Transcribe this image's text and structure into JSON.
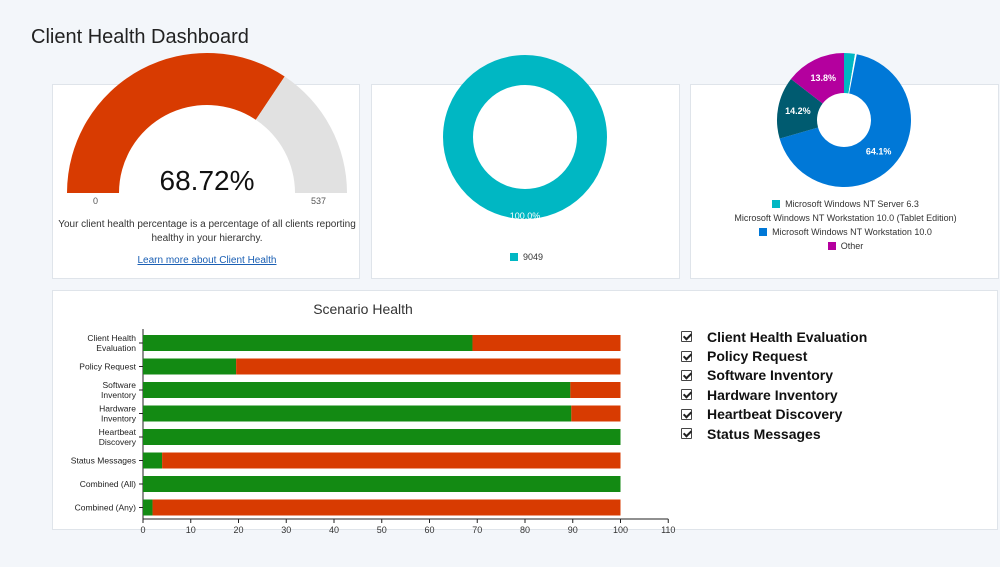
{
  "page": {
    "title": "Client Health Dashboard"
  },
  "gauge": {
    "value_text": "68.72%",
    "value_fraction": 0.6872,
    "min_label": "0",
    "max_label": "537",
    "description_line1": "Your client health percentage is a percentage of all clients reporting",
    "description_line2": "healthy in your hierarchy.",
    "link_text": "Learn more about Client Health",
    "colors": {
      "healthy": "#d83b01",
      "remaining": "#e1e1e1"
    }
  },
  "donut": {
    "slices": [
      {
        "label": "9049",
        "percent": 100.0,
        "percent_text": "100.0%",
        "color": "#00b7c3"
      }
    ]
  },
  "os_pie": {
    "slices": [
      {
        "label": "Microsoft Windows NT Server 6.3",
        "percent": 2.5,
        "percent_text": "",
        "color": "#00b7c3"
      },
      {
        "label": "Microsoft Windows NT Workstation 10.0 (Tablet Edition)",
        "percent": 0.4,
        "percent_text": "",
        "color": "#ffffff"
      },
      {
        "label": "Microsoft Windows NT Workstation 10.0",
        "percent": 64.1,
        "percent_text": "64.1%",
        "color": "#0078d7"
      },
      {
        "label": "",
        "percent": 14.2,
        "percent_text": "14.2%",
        "color": "#005b70"
      },
      {
        "label": "Other",
        "percent": 13.8,
        "percent_text": "13.8%",
        "color": "#b4009e"
      }
    ],
    "legend": [
      {
        "label": "Microsoft Windows NT Server 6.3",
        "color": "#00b7c3"
      },
      {
        "label": "Microsoft Windows NT Workstation 10.0 (Tablet Edition)",
        "color": ""
      },
      {
        "label": "Microsoft Windows NT Workstation 10.0",
        "color": "#0078d7"
      },
      {
        "label": "Other",
        "color": "#b4009e"
      }
    ]
  },
  "scenario": {
    "title": "Scenario Health",
    "legend": [
      "Client Health Evaluation",
      "Policy Request",
      "Software Inventory",
      "Hardware Inventory",
      "Heartbeat Discovery",
      "Status Messages"
    ]
  },
  "chart_data": {
    "type": "bar",
    "orientation": "horizontal",
    "stacked": true,
    "title": "Scenario Health",
    "categories": [
      [
        "Client Health",
        "Evaluation"
      ],
      [
        "Policy Request"
      ],
      [
        "Software",
        "Inventory"
      ],
      [
        "Hardware",
        "Inventory"
      ],
      [
        "Heartbeat",
        "Discovery"
      ],
      [
        "Status Messages"
      ],
      [
        "Combined (All)"
      ],
      [
        "Combined (Any)"
      ]
    ],
    "series": [
      {
        "values": [
          69,
          19.5,
          89.5,
          89.7,
          100,
          4,
          100,
          2
        ],
        "color": "#138a13"
      },
      {
        "values": [
          31,
          80.5,
          10.5,
          10.3,
          0,
          96,
          0,
          98
        ],
        "color": "#d83b01"
      }
    ],
    "xlim": [
      0,
      110
    ],
    "xticks": [
      0,
      10,
      20,
      30,
      40,
      50,
      60,
      70,
      80,
      90,
      100,
      110
    ],
    "grid": false
  }
}
